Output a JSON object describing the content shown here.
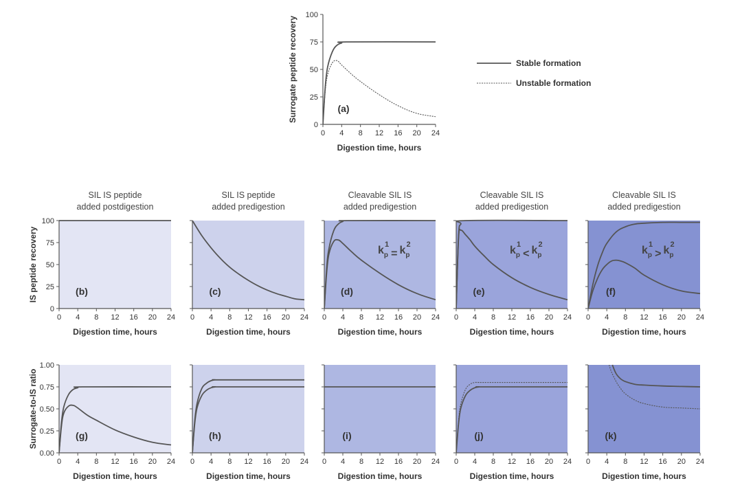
{
  "colors": {
    "line": "#555555",
    "axis": "#555555",
    "panel_b": "#e3e5f4",
    "panel_c": "#cdd2ec",
    "panel_d": "#aeb7e2",
    "panel_e": "#9aa4db",
    "panel_f": "#8592d2",
    "panel_g": "#e3e5f4",
    "panel_h": "#cdd2ec",
    "panel_i": "#aeb7e2",
    "panel_j": "#9aa4db",
    "panel_k": "#8592d2"
  },
  "legend": {
    "stable": "Stable formation",
    "unstable": "Unstable formation"
  },
  "column_titles": [
    [
      "SIL IS peptide",
      "added postdigestion"
    ],
    [
      "SIL IS peptide",
      "added predigestion"
    ],
    [
      "Cleavable SIL IS",
      "added predigestion"
    ],
    [
      "Cleavable SIL IS",
      "added predigestion"
    ],
    [
      "Cleavable SIL IS",
      "added predigestion"
    ]
  ],
  "row_ylabels": {
    "top": "Surrogate peptide recovery",
    "middle": "IS peptide recovery",
    "bottom": "Surrogate-to-IS ratio"
  },
  "chart_data": [
    {
      "id": "a",
      "type": "line",
      "panel_label": "(a)",
      "xlabel": "Digestion time, hours",
      "ylabel": "Surrogate peptide recovery",
      "xlim": [
        0,
        24
      ],
      "ylim": [
        0,
        100
      ],
      "xticks": [
        "0",
        "4",
        "8",
        "12",
        "16",
        "20",
        "24"
      ],
      "yticks": [
        "0",
        "25",
        "50",
        "75",
        "100"
      ],
      "series": [
        {
          "name": "Stable formation",
          "style": "solid",
          "x": [
            0,
            0.5,
            1,
            2,
            3,
            4,
            5,
            24
          ],
          "y": [
            0,
            34,
            52,
            66,
            72,
            74,
            75,
            75
          ]
        },
        {
          "name": "Unstable formation",
          "style": "dashed",
          "x": [
            0,
            0.5,
            1,
            2,
            3,
            4,
            6,
            8,
            12,
            16,
            20,
            24
          ],
          "y": [
            0,
            30,
            45,
            56,
            58,
            54,
            46,
            39,
            27,
            17,
            10,
            7
          ]
        }
      ]
    },
    {
      "id": "b",
      "type": "line",
      "panel_label": "(b)",
      "xlabel": "Digestion time, hours",
      "ylabel": "IS peptide recovery",
      "xlim": [
        0,
        24
      ],
      "ylim": [
        0,
        100
      ],
      "xticks": [
        "0",
        "4",
        "8",
        "12",
        "16",
        "20",
        "24"
      ],
      "yticks": [
        "0",
        "25",
        "50",
        "75",
        "100"
      ],
      "series": [
        {
          "style": "solid",
          "x": [
            0,
            24
          ],
          "y": [
            100,
            100
          ]
        }
      ]
    },
    {
      "id": "c",
      "type": "line",
      "panel_label": "(c)",
      "xlabel": "Digestion time, hours",
      "ylabel": "",
      "xlim": [
        0,
        24
      ],
      "ylim": [
        0,
        100
      ],
      "xticks": [
        "0",
        "4",
        "8",
        "12",
        "16",
        "20",
        "24"
      ],
      "yticks": [],
      "series": [
        {
          "style": "solid",
          "x": [
            0,
            2,
            4,
            6,
            8,
            10,
            12,
            14,
            16,
            18,
            20,
            22,
            24
          ],
          "y": [
            100,
            83,
            69,
            57,
            47,
            39,
            32,
            26,
            21,
            17,
            14,
            11,
            10
          ]
        }
      ]
    },
    {
      "id": "d",
      "type": "line",
      "panel_label": "(d)",
      "annotation": [
        "k",
        "p",
        "1",
        "=",
        "k",
        "p",
        "2"
      ],
      "xlabel": "Digestion time, hours",
      "ylabel": "",
      "xlim": [
        0,
        24
      ],
      "ylim": [
        0,
        100
      ],
      "xticks": [
        "0",
        "4",
        "8",
        "12",
        "16",
        "20",
        "24"
      ],
      "yticks": [],
      "series": [
        {
          "style": "solid",
          "x": [
            0,
            0.5,
            1,
            2,
            3,
            4,
            5,
            24
          ],
          "y": [
            0,
            45,
            68,
            88,
            96,
            99,
            100,
            100
          ]
        },
        {
          "style": "solid",
          "x": [
            0,
            0.5,
            1,
            2,
            3,
            4,
            6,
            8,
            12,
            16,
            20,
            24
          ],
          "y": [
            0,
            40,
            62,
            76,
            78,
            74,
            64,
            55,
            40,
            27,
            17,
            10
          ]
        }
      ]
    },
    {
      "id": "e",
      "type": "line",
      "panel_label": "(e)",
      "annotation": [
        "k",
        "p",
        "1",
        "<",
        "k",
        "p",
        "2"
      ],
      "xlabel": "Digestion time, hours",
      "ylabel": "",
      "xlim": [
        0,
        24
      ],
      "ylim": [
        0,
        100
      ],
      "xticks": [
        "0",
        "4",
        "8",
        "12",
        "16",
        "20",
        "24"
      ],
      "yticks": [],
      "series": [
        {
          "style": "solid",
          "x": [
            0,
            0.5,
            1,
            2,
            24
          ],
          "y": [
            0,
            82,
            96,
            100,
            100
          ]
        },
        {
          "style": "solid",
          "x": [
            0,
            0.5,
            1,
            2,
            3,
            4,
            6,
            8,
            12,
            16,
            20,
            24
          ],
          "y": [
            0,
            80,
            89,
            84,
            78,
            71,
            60,
            50,
            35,
            24,
            16,
            10
          ]
        }
      ]
    },
    {
      "id": "f",
      "type": "line",
      "panel_label": "(f)",
      "annotation": [
        "k",
        "p",
        "1",
        ">",
        "k",
        "p",
        "2"
      ],
      "xlabel": "Digestion time, hours",
      "ylabel": "",
      "xlim": [
        0,
        24
      ],
      "ylim": [
        0,
        100
      ],
      "xticks": [
        "0",
        "4",
        "8",
        "12",
        "16",
        "20",
        "24"
      ],
      "yticks": [],
      "series": [
        {
          "style": "solid",
          "x": [
            0,
            1,
            2,
            3,
            4,
            6,
            8,
            10,
            12,
            16,
            20,
            24
          ],
          "y": [
            0,
            27,
            48,
            63,
            74,
            87,
            93,
            96,
            97,
            98,
            98,
            98
          ]
        },
        {
          "style": "solid",
          "x": [
            0,
            1,
            2,
            3,
            4,
            5,
            6,
            7,
            8,
            10,
            12,
            16,
            20,
            24
          ],
          "y": [
            0,
            20,
            34,
            44,
            50,
            54,
            55,
            54,
            52,
            46,
            38,
            27,
            20,
            17
          ]
        }
      ]
    },
    {
      "id": "g",
      "type": "line",
      "panel_label": "(g)",
      "xlabel": "Digestion time, hours",
      "ylabel": "Surrogate-to-IS ratio",
      "xlim": [
        0,
        24
      ],
      "ylim": [
        0,
        1
      ],
      "xticks": [
        "0",
        "4",
        "8",
        "12",
        "16",
        "20",
        "24"
      ],
      "yticks": [
        "0.00",
        "0.25",
        "0.50",
        "0.75",
        "1.00"
      ],
      "series": [
        {
          "style": "solid",
          "x": [
            0,
            0.5,
            1,
            2,
            3,
            4,
            5,
            24
          ],
          "y": [
            0,
            0.34,
            0.52,
            0.66,
            0.72,
            0.74,
            0.75,
            0.75
          ]
        },
        {
          "style": "solid",
          "x": [
            0,
            0.5,
            1,
            2,
            3,
            4,
            6,
            8,
            12,
            16,
            20,
            24
          ],
          "y": [
            0,
            0.3,
            0.45,
            0.53,
            0.54,
            0.51,
            0.43,
            0.37,
            0.26,
            0.18,
            0.12,
            0.09
          ]
        }
      ]
    },
    {
      "id": "h",
      "type": "line",
      "panel_label": "(h)",
      "xlabel": "Digestion time, hours",
      "ylabel": "",
      "xlim": [
        0,
        24
      ],
      "ylim": [
        0,
        1
      ],
      "xticks": [
        "0",
        "4",
        "8",
        "12",
        "16",
        "20",
        "24"
      ],
      "yticks": [],
      "series": [
        {
          "style": "solid",
          "x": [
            0,
            0.5,
            1,
            2,
            3,
            4,
            5,
            6,
            24
          ],
          "y": [
            0,
            0.36,
            0.56,
            0.73,
            0.79,
            0.82,
            0.83,
            0.83,
            0.83
          ]
        },
        {
          "style": "solid",
          "x": [
            0,
            0.5,
            1,
            2,
            3,
            4,
            5,
            6,
            24
          ],
          "y": [
            0,
            0.33,
            0.51,
            0.65,
            0.71,
            0.74,
            0.75,
            0.75,
            0.75
          ]
        }
      ]
    },
    {
      "id": "i",
      "type": "line",
      "panel_label": "(i)",
      "xlabel": "Digestion time, hours",
      "ylabel": "",
      "xlim": [
        0,
        24
      ],
      "ylim": [
        0,
        1
      ],
      "xticks": [
        "0",
        "4",
        "8",
        "12",
        "16",
        "20",
        "24"
      ],
      "yticks": [],
      "series": [
        {
          "style": "solid",
          "x": [
            0,
            24
          ],
          "y": [
            0.75,
            0.75
          ]
        }
      ]
    },
    {
      "id": "j",
      "type": "line",
      "panel_label": "(j)",
      "xlabel": "Digestion time, hours",
      "ylabel": "",
      "xlim": [
        0,
        24
      ],
      "ylim": [
        0,
        1
      ],
      "xticks": [
        "0",
        "4",
        "8",
        "12",
        "16",
        "20",
        "24"
      ],
      "yticks": [],
      "series": [
        {
          "style": "dashed",
          "x": [
            0,
            0.5,
            1,
            2,
            3,
            4,
            5,
            6,
            24
          ],
          "y": [
            0,
            0.36,
            0.56,
            0.72,
            0.78,
            0.8,
            0.8,
            0.8,
            0.8
          ]
        },
        {
          "style": "solid",
          "x": [
            0,
            0.5,
            1,
            2,
            3,
            4,
            5,
            6,
            24
          ],
          "y": [
            0,
            0.33,
            0.51,
            0.65,
            0.71,
            0.74,
            0.75,
            0.75,
            0.75
          ]
        }
      ]
    },
    {
      "id": "k",
      "type": "line",
      "panel_label": "(k)",
      "xlabel": "Digestion time, hours",
      "ylabel": "",
      "xlim": [
        0,
        24
      ],
      "ylim": [
        0,
        1
      ],
      "xticks": [
        "0",
        "4",
        "8",
        "12",
        "16",
        "20",
        "24"
      ],
      "yticks": [],
      "series": [
        {
          "style": "solid",
          "x": [
            5.2,
            6,
            7,
            8,
            10,
            12,
            16,
            20,
            24
          ],
          "y": [
            1.0,
            0.9,
            0.84,
            0.81,
            0.78,
            0.77,
            0.76,
            0.755,
            0.75
          ]
        },
        {
          "style": "dashed",
          "x": [
            4.5,
            5,
            6,
            7,
            8,
            10,
            12,
            16,
            20,
            24
          ],
          "y": [
            1.0,
            0.92,
            0.81,
            0.73,
            0.67,
            0.6,
            0.56,
            0.52,
            0.51,
            0.5
          ]
        }
      ]
    }
  ]
}
